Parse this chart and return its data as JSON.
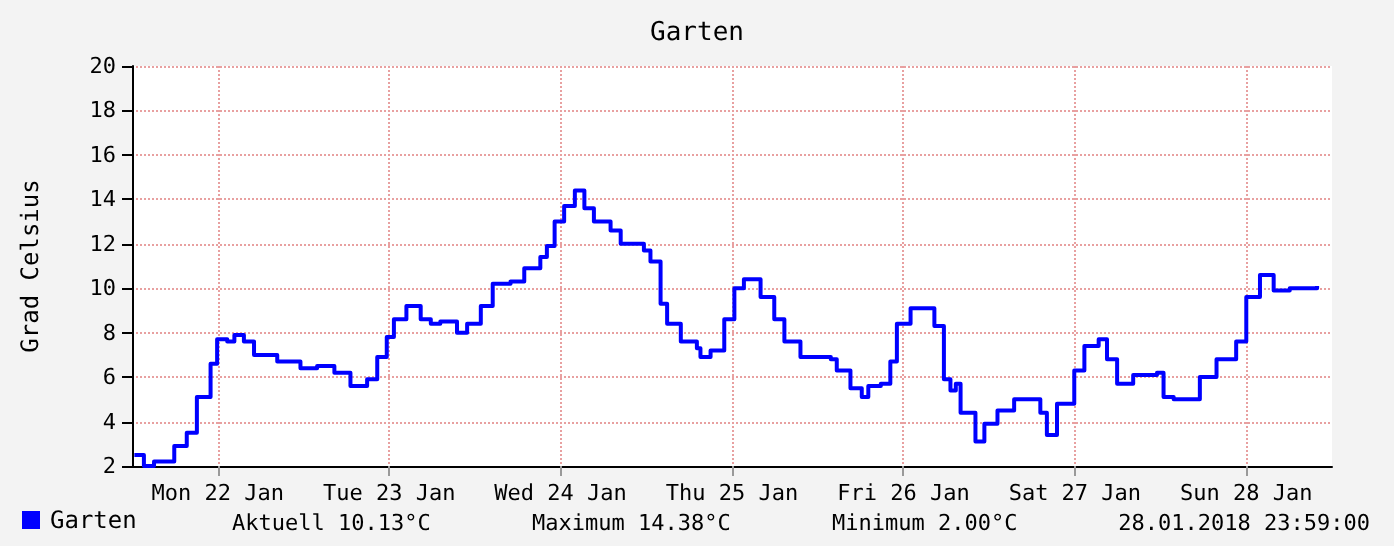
{
  "chart_data": {
    "type": "step",
    "title": "Garten",
    "ylabel": "Grad Celsius",
    "annotations": [
      "Aktuell 10.13°C",
      "Maximum 14.38°C",
      "Minimum 2.00°C",
      "28.01.2018 23:59:00"
    ],
    "x": [
      "2018-01-22T00:20",
      "2018-01-22T01:40",
      "2018-01-22T03:05",
      "2018-01-22T05:55",
      "2018-01-22T07:40",
      "2018-01-22T09:05",
      "2018-01-22T11:00",
      "2018-01-22T11:55",
      "2018-01-22T13:20",
      "2018-01-22T14:20",
      "2018-01-22T15:40",
      "2018-01-22T17:05",
      "2018-01-22T20:20",
      "2018-01-22T23:35",
      "2018-01-23T01:55",
      "2018-01-23T04:20",
      "2018-01-23T06:35",
      "2018-01-23T08:55",
      "2018-01-23T10:20",
      "2018-01-23T11:40",
      "2018-01-23T12:40",
      "2018-01-23T14:25",
      "2018-01-23T15:30",
      "2018-01-23T16:25",
      "2018-01-23T17:50",
      "2018-01-23T19:10",
      "2018-01-23T21:30",
      "2018-01-23T22:55",
      "2018-01-24T00:50",
      "2018-01-24T02:30",
      "2018-01-24T05:00",
      "2018-01-24T06:55",
      "2018-01-24T09:10",
      "2018-01-24T10:05",
      "2018-01-24T11:10",
      "2018-01-24T12:30",
      "2018-01-24T14:00",
      "2018-01-24T15:20",
      "2018-01-24T16:40",
      "2018-01-24T19:00",
      "2018-01-24T20:25",
      "2018-01-24T23:40",
      "2018-01-25T00:35",
      "2018-01-25T02:00",
      "2018-01-25T02:55",
      "2018-01-25T04:50",
      "2018-01-25T07:05",
      "2018-01-25T07:35",
      "2018-01-25T09:00",
      "2018-01-25T10:55",
      "2018-01-25T12:20",
      "2018-01-25T13:40",
      "2018-01-25T16:00",
      "2018-01-25T17:55",
      "2018-01-25T19:20",
      "2018-01-25T21:35",
      "2018-01-26T01:50",
      "2018-01-26T02:40",
      "2018-01-26T04:35",
      "2018-01-26T06:10",
      "2018-01-26T07:05",
      "2018-01-26T08:50",
      "2018-01-26T10:10",
      "2018-01-26T11:05",
      "2018-01-26T13:00",
      "2018-01-26T14:25",
      "2018-01-26T16:20",
      "2018-01-26T17:40",
      "2018-01-26T18:35",
      "2018-01-26T19:20",
      "2018-01-26T20:00",
      "2018-01-26T22:05",
      "2018-01-26T23:20",
      "2018-01-27T01:10",
      "2018-01-27T03:30",
      "2018-01-27T06:05",
      "2018-01-27T07:10",
      "2018-01-27T08:05",
      "2018-01-27T09:30",
      "2018-01-27T11:55",
      "2018-01-27T13:20",
      "2018-01-27T15:20",
      "2018-01-27T16:30",
      "2018-01-27T17:55",
      "2018-01-27T20:10",
      "2018-01-27T23:30",
      "2018-01-28T00:25",
      "2018-01-28T01:50",
      "2018-01-28T05:30",
      "2018-01-28T07:50",
      "2018-01-28T10:35",
      "2018-01-28T12:00",
      "2018-01-28T13:55",
      "2018-01-28T15:50",
      "2018-01-28T18:05",
      "2018-01-28T21:55"
    ],
    "series": [
      {
        "name": "Garten",
        "color": "#0000ff",
        "values": [
          2.5,
          2.0,
          2.2,
          2.9,
          3.5,
          5.1,
          6.6,
          7.7,
          7.6,
          7.9,
          7.6,
          7.0,
          6.7,
          6.4,
          6.5,
          6.2,
          5.6,
          5.9,
          6.9,
          7.8,
          8.6,
          9.2,
          9.2,
          8.6,
          8.4,
          8.5,
          8.0,
          8.4,
          9.2,
          10.2,
          10.3,
          10.9,
          11.4,
          11.9,
          13.0,
          13.7,
          14.4,
          13.6,
          13.0,
          12.6,
          12.0,
          11.7,
          11.2,
          9.3,
          8.4,
          7.6,
          7.3,
          6.9,
          7.2,
          8.6,
          10.0,
          10.4,
          9.6,
          8.6,
          7.6,
          6.9,
          6.8,
          6.3,
          5.5,
          5.1,
          5.6,
          5.7,
          6.7,
          8.4,
          9.1,
          9.1,
          8.3,
          5.9,
          5.4,
          5.7,
          4.4,
          3.1,
          3.9,
          4.5,
          5.0,
          5.0,
          4.4,
          3.4,
          4.8,
          6.3,
          7.4,
          7.7,
          6.8,
          5.7,
          6.1,
          6.2,
          5.1,
          5.0,
          6.0,
          6.8,
          7.6,
          9.6,
          10.6,
          9.9,
          10.0,
          10.1
        ]
      }
    ],
    "xlim": [
      "2018-01-22T00:00",
      "2018-01-29T00:00"
    ],
    "xticks": [
      {
        "value": "2018-01-22T12:00",
        "label": "Mon 22 Jan"
      },
      {
        "value": "2018-01-23T12:00",
        "label": "Tue 23 Jan"
      },
      {
        "value": "2018-01-24T12:00",
        "label": "Wed 24 Jan"
      },
      {
        "value": "2018-01-25T12:00",
        "label": "Thu 25 Jan"
      },
      {
        "value": "2018-01-26T12:00",
        "label": "Fri 26 Jan"
      },
      {
        "value": "2018-01-27T12:00",
        "label": "Sat 27 Jan"
      },
      {
        "value": "2018-01-28T12:00",
        "label": "Sun 28 Jan"
      }
    ],
    "ylim": [
      2,
      20
    ],
    "yticks": [
      2,
      4,
      6,
      8,
      10,
      12,
      14,
      16,
      18,
      20
    ],
    "grid": true,
    "legend": "bottom left",
    "marker": "none",
    "line_style": "solid"
  }
}
